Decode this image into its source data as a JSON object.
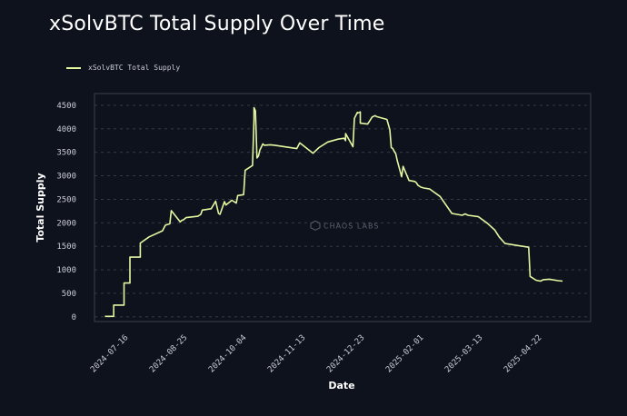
{
  "chart_data": {
    "type": "line",
    "title": "xSolvBTC Total Supply Over Time",
    "xlabel": "Date",
    "ylabel": "Total Supply",
    "watermark": "CHAOS LABS",
    "legend": "top-left",
    "grid": true,
    "color": "#e2f7a1",
    "x_ticks": [
      "2024-07-16",
      "2024-08-25",
      "2024-10-04",
      "2024-11-13",
      "2024-12-23",
      "2025-02-01",
      "2025-03-13",
      "2025-04-22"
    ],
    "y_ticks": [
      0,
      500,
      1000,
      1500,
      2000,
      2500,
      3000,
      3500,
      4000,
      4500
    ],
    "xlim": [
      "2024-06-23",
      "2025-05-25"
    ],
    "ylim": [
      -100,
      4750
    ],
    "series": [
      {
        "name": "xSolvBTC Total Supply",
        "x": [
          "2024-06-30",
          "2024-07-01",
          "2024-07-06",
          "2024-07-06",
          "2024-07-13",
          "2024-07-13",
          "2024-07-17",
          "2024-07-17",
          "2024-07-24",
          "2024-07-24",
          "2024-07-30",
          "2024-08-08",
          "2024-08-10",
          "2024-08-13",
          "2024-08-14",
          "2024-08-20",
          "2024-08-21",
          "2024-08-22",
          "2024-08-24",
          "2024-09-01",
          "2024-09-03",
          "2024-09-04",
          "2024-09-10",
          "2024-09-13",
          "2024-09-15",
          "2024-09-16",
          "2024-09-19",
          "2024-09-20",
          "2024-09-24",
          "2024-09-27",
          "2024-09-28",
          "2024-10-02",
          "2024-10-03",
          "2024-10-08",
          "2024-10-09",
          "2024-10-09",
          "2024-10-10",
          "2024-10-11",
          "2024-10-12",
          "2024-10-13",
          "2024-10-15",
          "2024-10-16",
          "2024-10-20",
          "2024-10-23",
          "2024-11-07",
          "2024-11-09",
          "2024-11-18",
          "2024-11-22",
          "2024-11-28",
          "2024-12-05",
          "2024-12-09",
          "2024-12-10",
          "2024-12-10",
          "2024-12-15",
          "2024-12-16",
          "2024-12-18",
          "2024-12-18",
          "2024-12-20",
          "2024-12-20",
          "2024-12-25",
          "2024-12-28",
          "2024-12-30",
          "2024-12-31",
          "2025-01-07",
          "2025-01-09",
          "2025-01-10",
          "2025-01-11",
          "2025-01-12",
          "2025-01-13",
          "2025-01-14",
          "2025-01-17",
          "2025-01-18",
          "2025-01-22",
          "2025-01-26",
          "2025-01-27",
          "2025-01-28",
          "2025-01-30",
          "2025-02-01",
          "2025-02-05",
          "2025-02-12",
          "2025-02-20",
          "2025-02-27",
          "2025-03-01",
          "2025-03-03",
          "2025-03-10",
          "2025-03-16",
          "2025-03-21",
          "2025-03-24",
          "2025-03-28",
          "2025-04-05",
          "2025-04-13",
          "2025-04-14",
          "2025-04-18",
          "2025-04-21",
          "2025-04-23",
          "2025-04-27",
          "2025-05-03",
          "2025-05-06"
        ],
        "y": [
          10,
          10,
          10,
          250,
          250,
          720,
          720,
          1270,
          1270,
          1570,
          1700,
          1830,
          1950,
          1980,
          2260,
          2020,
          2050,
          2060,
          2110,
          2140,
          2180,
          2270,
          2300,
          2460,
          2200,
          2180,
          2450,
          2380,
          2480,
          2420,
          2580,
          2600,
          3120,
          3220,
          4200,
          4450,
          4380,
          3380,
          3420,
          3550,
          3680,
          3650,
          3660,
          3650,
          3580,
          3700,
          3480,
          3600,
          3720,
          3780,
          3800,
          3750,
          3900,
          3620,
          4220,
          4350,
          4330,
          4360,
          4120,
          4100,
          4250,
          4280,
          4260,
          4200,
          3980,
          3600,
          3580,
          3520,
          3470,
          3330,
          2980,
          3200,
          2900,
          2880,
          2850,
          2800,
          2760,
          2740,
          2720,
          2560,
          2200,
          2160,
          2190,
          2160,
          2130,
          1990,
          1850,
          1700,
          1560,
          1520,
          1480,
          860,
          780,
          760,
          790,
          800,
          770,
          760
        ]
      }
    ]
  }
}
